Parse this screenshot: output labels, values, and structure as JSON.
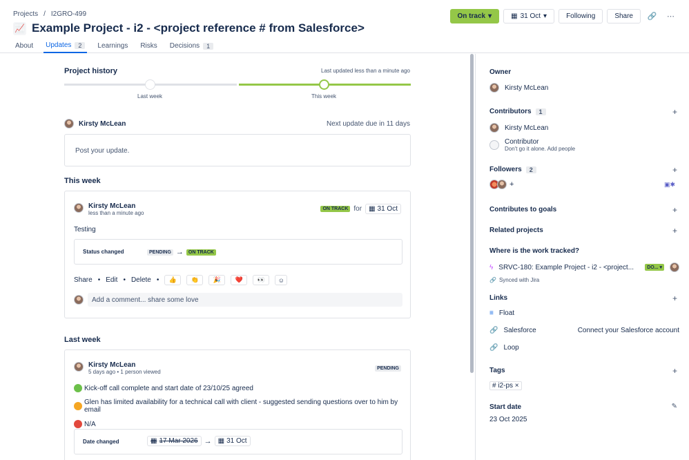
{
  "breadcrumb": {
    "projects": "Projects",
    "sep": "/",
    "key": "I2GRO-499"
  },
  "project": {
    "emoji": "📈",
    "title": "Example Project - i2 - <project reference # from Salesforce>"
  },
  "tabs": [
    {
      "label": "About",
      "count": ""
    },
    {
      "label": "Updates",
      "count": "2"
    },
    {
      "label": "Learnings",
      "count": ""
    },
    {
      "label": "Risks",
      "count": ""
    },
    {
      "label": "Decisions",
      "count": "1"
    }
  ],
  "actions": {
    "status": "On track",
    "date": "31 Oct",
    "following": "Following",
    "share": "Share",
    "link_icon": "link-icon",
    "more_icon": "more-icon"
  },
  "history": {
    "heading": "Project history",
    "last_updated": "Last updated less than a minute ago",
    "last_week": "Last week",
    "this_week": "This week"
  },
  "composer": {
    "author": "Kirsty McLean",
    "next_update": "Next update due in 11 days",
    "placeholder": "Post your update."
  },
  "this_week": {
    "heading": "This week",
    "author": "Kirsty McLean",
    "time": "less than a minute ago",
    "status": "ON TRACK",
    "for": "for",
    "date": "31 Oct",
    "body": "Testing",
    "change_label": "Status changed",
    "from": "PENDING",
    "to": "ON TRACK",
    "share": "Share",
    "edit": "Edit",
    "delete": "Delete",
    "reactions": [
      "👍",
      "👏",
      "🎉",
      "❤️",
      "👀"
    ],
    "comment_placeholder": "Add a comment... share some love"
  },
  "last_week": {
    "heading": "Last week",
    "author": "Kirsty McLean",
    "time": "5 days ago",
    "viewed": "1 person viewed",
    "status": "PENDING",
    "items": [
      {
        "color": "#6cc04a",
        "text": "Kick-off call complete and start date of 23/10/25 agreed"
      },
      {
        "color": "#f5a623",
        "text": "Glen has limited availability for a technical call with client - suggested sending questions over to him by email"
      },
      {
        "color": "#e2483d",
        "text": "N/A"
      }
    ],
    "change_label": "Date changed",
    "from": "17 Mar 2026",
    "to": "31 Oct"
  },
  "sidebar": {
    "owner": {
      "label": "Owner",
      "name": "Kirsty McLean"
    },
    "contributors": {
      "label": "Contributors",
      "count": "1",
      "name": "Kirsty McLean",
      "hint_title": "Contributor",
      "hint_text": "Don't go it alone. Add people"
    },
    "followers": {
      "label": "Followers",
      "count": "2"
    },
    "goals": {
      "label": "Contributes to goals"
    },
    "related": {
      "label": "Related projects"
    },
    "tracked": {
      "label": "Where is the work tracked?",
      "item": "SRVC-180: Example Project - i2 - <project...",
      "status": "DO...",
      "synced": "Synced with Jira"
    },
    "links": {
      "label": "Links",
      "float": "Float",
      "salesforce": "Salesforce",
      "connect": "Connect your Salesforce account",
      "loop": "Loop"
    },
    "tags": {
      "label": "Tags",
      "tag": "# i2-ps"
    },
    "start_date": {
      "label": "Start date",
      "value": "23 Oct 2025"
    }
  }
}
